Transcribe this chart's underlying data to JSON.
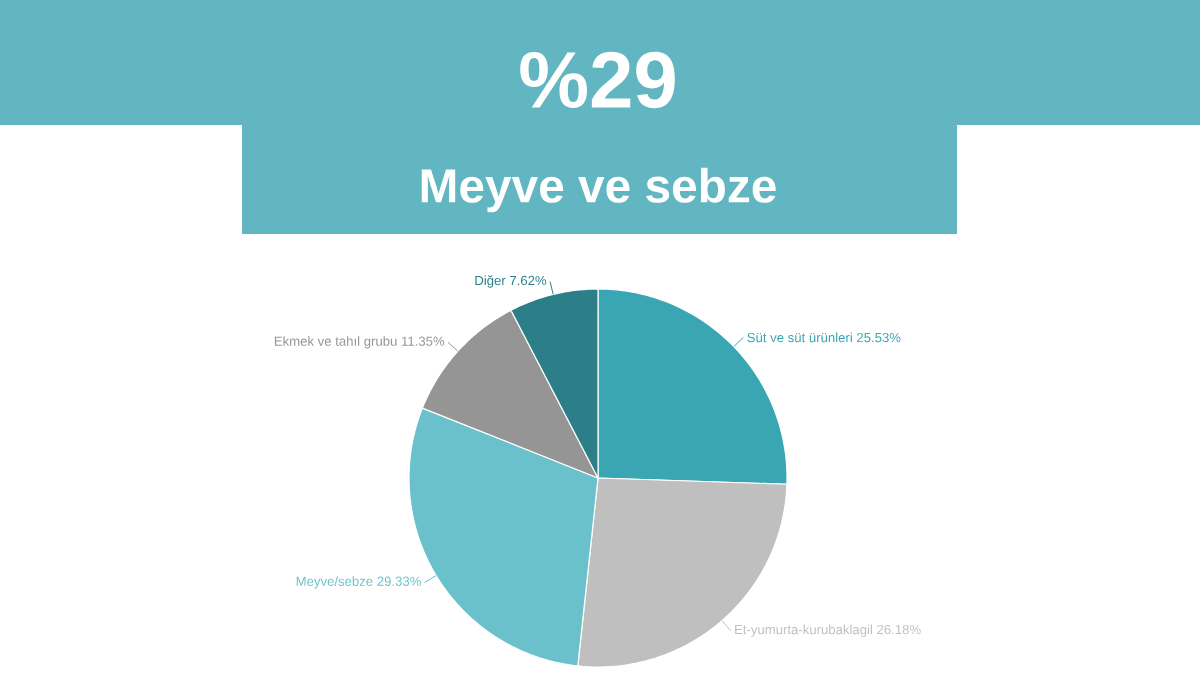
{
  "chart_data": {
    "type": "pie",
    "title": "%29",
    "subtitle": "Meyve ve sebze",
    "categories": [
      "Süt ve süt ürünleri",
      "Et-yumurta-kurubaklagil",
      "Meyve/sebze",
      "Ekmek ve tahıl grubu",
      "Diğer"
    ],
    "values": [
      25.53,
      26.18,
      29.33,
      11.35,
      7.62
    ],
    "value_labels": [
      "25.53%",
      "26.18%",
      "29.33%",
      "11.35%",
      "7.62%"
    ],
    "colors": [
      "#3aa5b3",
      "#bfbfbf",
      "#6ac1cb",
      "#959595",
      "#2c7f88"
    ]
  }
}
